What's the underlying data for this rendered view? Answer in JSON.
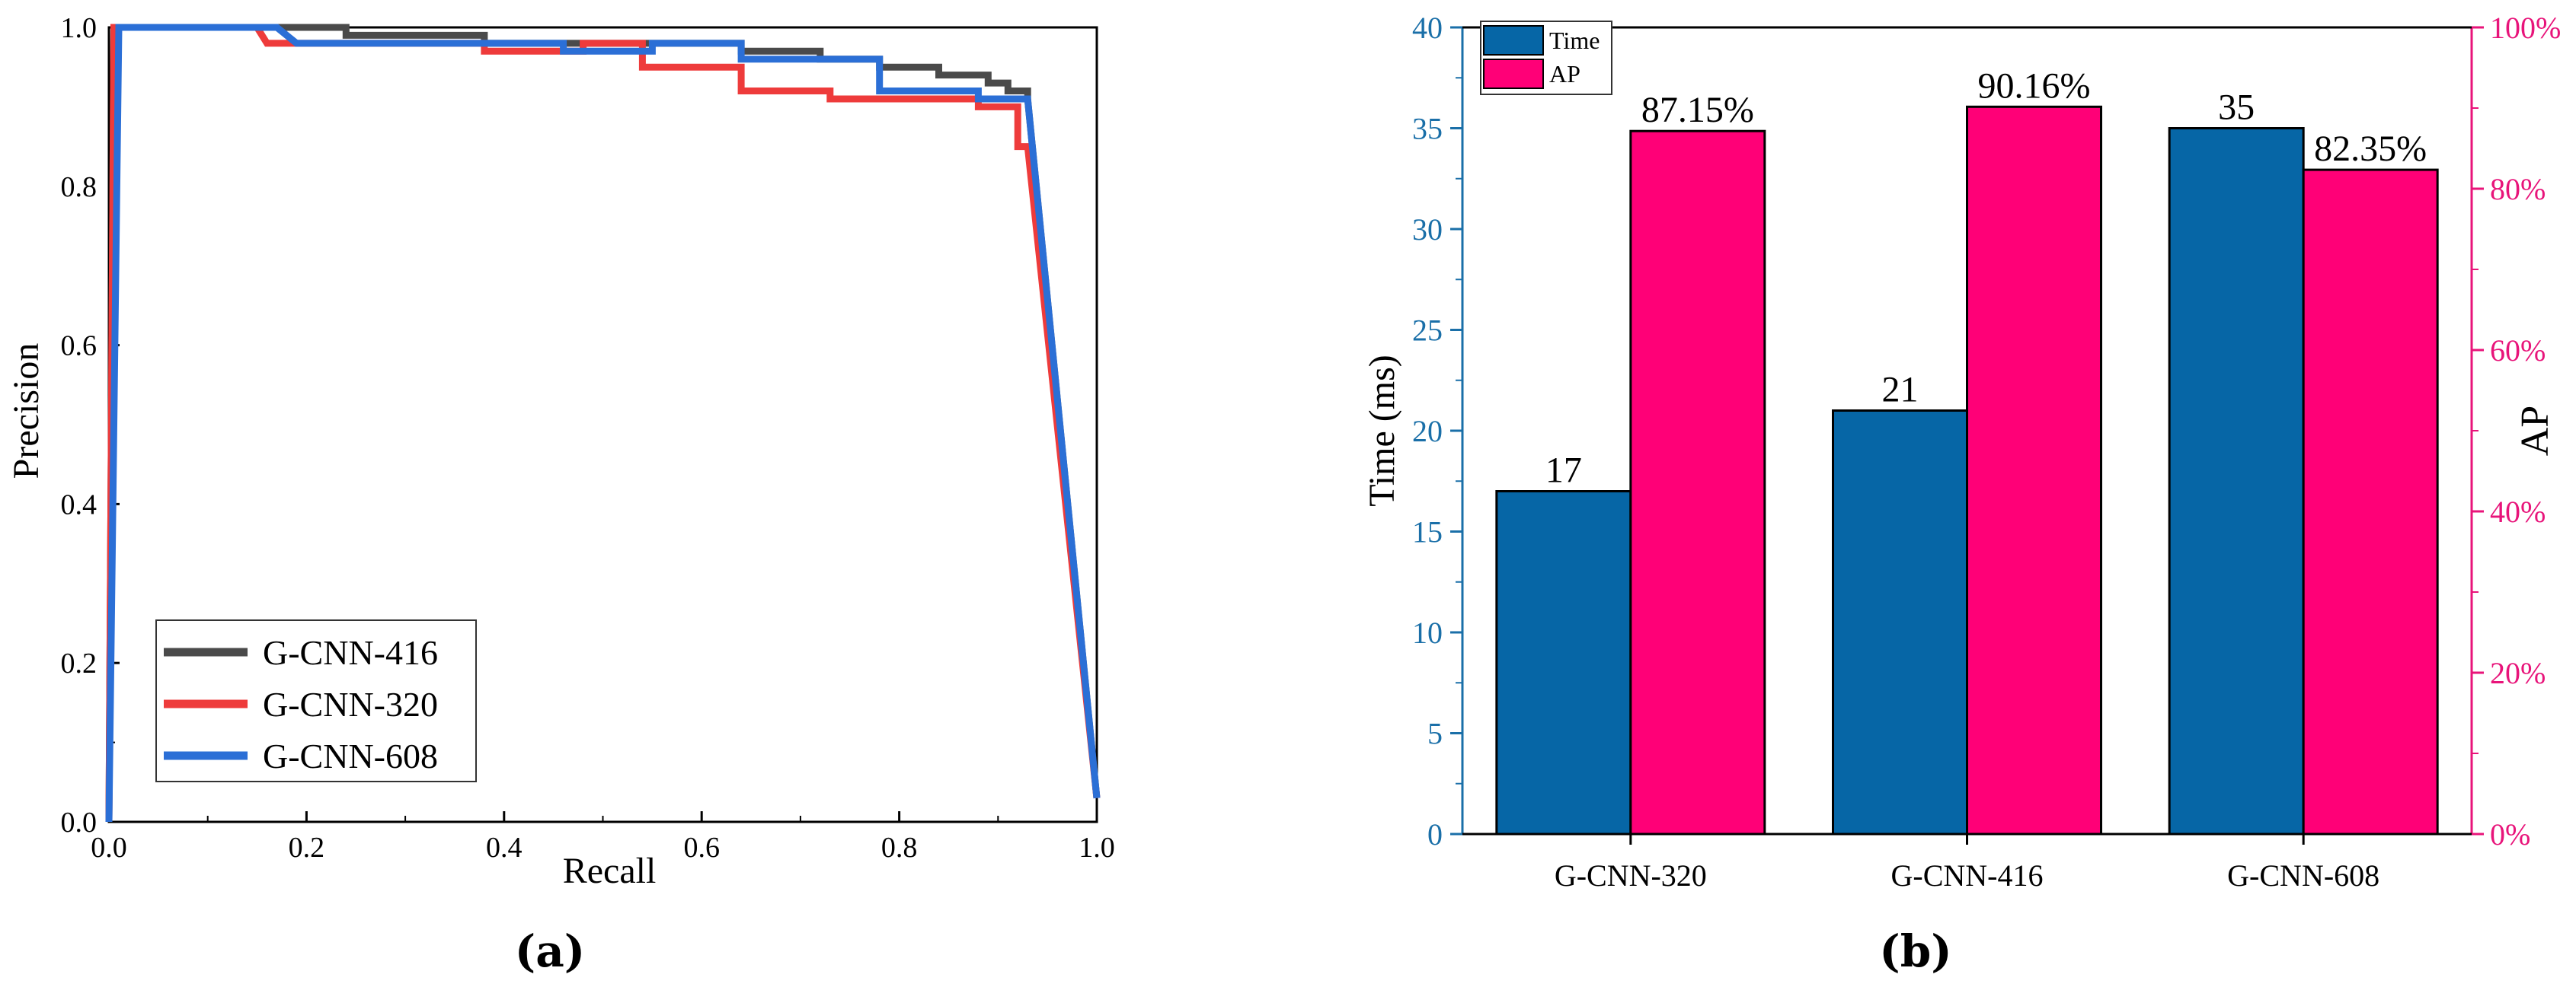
{
  "chart_data": [
    {
      "type": "line",
      "panel_label": "(a)",
      "title": "",
      "xlabel": "Recall",
      "ylabel": "Precision",
      "xlim": [
        0.0,
        1.0
      ],
      "ylim": [
        0.0,
        1.0
      ],
      "x_ticks": [
        "0.0",
        "0.2",
        "0.4",
        "0.6",
        "0.8",
        "1.0"
      ],
      "y_ticks": [
        "0.0",
        "0.2",
        "0.4",
        "0.6",
        "0.8",
        "1.0"
      ],
      "legend": {
        "placement": "bottom-left"
      },
      "series": [
        {
          "name": "G-CNN-416",
          "color": "#4a4a4a",
          "points": [
            [
              0.0,
              0.0
            ],
            [
              0.005,
              1.0
            ],
            [
              0.24,
              1.0
            ],
            [
              0.24,
              0.99
            ],
            [
              0.38,
              0.99
            ],
            [
              0.38,
              0.98
            ],
            [
              0.64,
              0.98
            ],
            [
              0.64,
              0.97
            ],
            [
              0.72,
              0.97
            ],
            [
              0.72,
              0.96
            ],
            [
              0.78,
              0.96
            ],
            [
              0.78,
              0.95
            ],
            [
              0.84,
              0.95
            ],
            [
              0.84,
              0.94
            ],
            [
              0.89,
              0.94
            ],
            [
              0.89,
              0.93
            ],
            [
              0.91,
              0.93
            ],
            [
              0.91,
              0.92
            ],
            [
              0.93,
              0.92
            ],
            [
              0.93,
              0.91
            ],
            [
              1.0,
              0.03
            ]
          ]
        },
        {
          "name": "G-CNN-320",
          "color": "#ee3b3b",
          "points": [
            [
              0.0,
              0.0
            ],
            [
              0.005,
              1.0
            ],
            [
              0.15,
              1.0
            ],
            [
              0.16,
              0.98
            ],
            [
              0.38,
              0.98
            ],
            [
              0.38,
              0.97
            ],
            [
              0.48,
              0.97
            ],
            [
              0.48,
              0.98
            ],
            [
              0.54,
              0.98
            ],
            [
              0.54,
              0.95
            ],
            [
              0.64,
              0.95
            ],
            [
              0.64,
              0.92
            ],
            [
              0.73,
              0.92
            ],
            [
              0.73,
              0.91
            ],
            [
              0.88,
              0.91
            ],
            [
              0.88,
              0.9
            ],
            [
              0.92,
              0.9
            ],
            [
              0.92,
              0.85
            ],
            [
              0.93,
              0.85
            ],
            [
              1.0,
              0.03
            ]
          ]
        },
        {
          "name": "G-CNN-608",
          "color": "#2b6fd6",
          "points": [
            [
              0.0,
              0.0
            ],
            [
              0.01,
              1.0
            ],
            [
              0.17,
              1.0
            ],
            [
              0.19,
              0.98
            ],
            [
              0.46,
              0.98
            ],
            [
              0.46,
              0.97
            ],
            [
              0.55,
              0.97
            ],
            [
              0.55,
              0.98
            ],
            [
              0.64,
              0.98
            ],
            [
              0.64,
              0.96
            ],
            [
              0.78,
              0.96
            ],
            [
              0.78,
              0.92
            ],
            [
              0.88,
              0.92
            ],
            [
              0.88,
              0.91
            ],
            [
              0.93,
              0.91
            ],
            [
              1.0,
              0.03
            ]
          ]
        }
      ]
    },
    {
      "type": "bar",
      "panel_label": "(b)",
      "title": "",
      "categories": [
        "G-CNN-320",
        "G-CNN-416",
        "G-CNN-608"
      ],
      "legend": {
        "placement": "top-left"
      },
      "series": [
        {
          "name": "Time",
          "axis": "left",
          "color": "#0666a6",
          "values": [
            17,
            21,
            35
          ],
          "labels": [
            "17",
            "21",
            "35"
          ]
        },
        {
          "name": "AP",
          "axis": "right",
          "color": "#ff0077",
          "values": [
            87.15,
            90.16,
            82.35
          ],
          "labels": [
            "87.15%",
            "90.16%",
            "82.35%"
          ]
        }
      ],
      "ylabel_left": "Time (ms)",
      "ylabel_right": "AP",
      "ylim_left": [
        0,
        40
      ],
      "ylim_right": [
        0,
        100
      ],
      "y_ticks_left": [
        "0",
        "5",
        "10",
        "15",
        "20",
        "25",
        "30",
        "35",
        "40"
      ],
      "y_ticks_right": [
        "0%",
        "20%",
        "40%",
        "60%",
        "80%",
        "100%"
      ],
      "left_axis_color": "#1a6fa8",
      "right_axis_color": "#e8147a"
    }
  ]
}
